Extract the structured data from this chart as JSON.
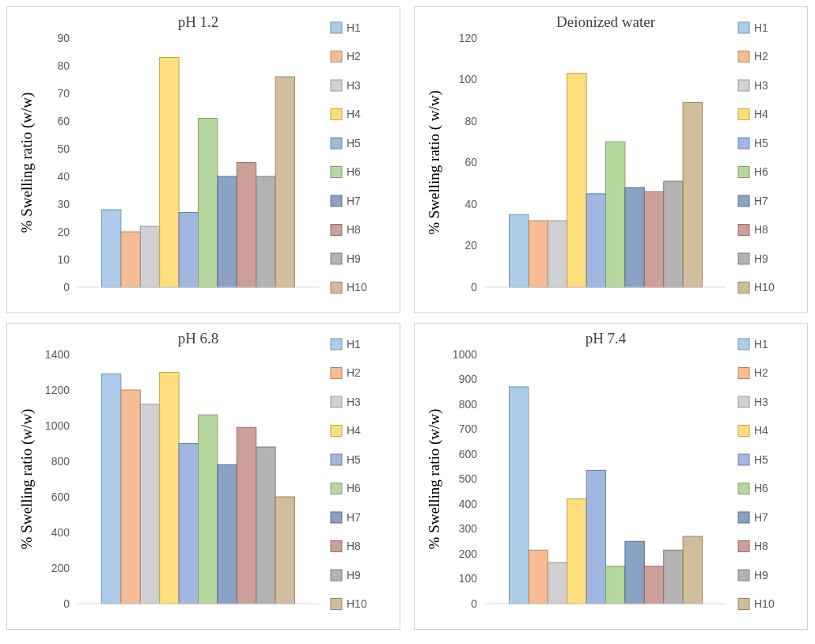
{
  "chart_data": [
    {
      "type": "bar",
      "title": "pH 1.2",
      "ylabel": "% Swelling ratio (w/w)",
      "categories": [
        null
      ],
      "ylim": [
        0,
        90
      ],
      "yticks": [
        0,
        10,
        20,
        30,
        40,
        50,
        60,
        70,
        80,
        90
      ],
      "legend": "right",
      "series": [
        {
          "name": "H1",
          "color": "#9dc3e6",
          "values": [
            28
          ]
        },
        {
          "name": "H2",
          "color": "#f4b183",
          "values": [
            20
          ]
        },
        {
          "name": "H3",
          "color": "#c9c9c9",
          "values": [
            22
          ]
        },
        {
          "name": "H4",
          "color": "#ffd966",
          "values": [
            83
          ]
        },
        {
          "name": "H5",
          "color": "#8faadc",
          "values": [
            27
          ]
        },
        {
          "name": "H6",
          "color": "#a9d18e",
          "values": [
            61
          ]
        },
        {
          "name": "H7",
          "color": "#7592b8",
          "values": [
            40
          ]
        },
        {
          "name": "H8",
          "color": "#c48f85",
          "values": [
            45
          ]
        },
        {
          "name": "H9",
          "color": "#a6a6a6",
          "values": [
            40
          ]
        },
        {
          "name": "H10",
          "color": "#c9b08a",
          "values": [
            76
          ]
        }
      ]
    },
    {
      "type": "bar",
      "title": "Deionized water",
      "ylabel": "% Swelling ratio ( w/w)",
      "categories": [
        null
      ],
      "ylim": [
        0,
        120
      ],
      "yticks": [
        0,
        20,
        40,
        60,
        80,
        100,
        120
      ],
      "legend": "right",
      "series": [
        {
          "name": "H1",
          "color": "#9dc3e6",
          "values": [
            35
          ]
        },
        {
          "name": "H2",
          "color": "#f4b183",
          "values": [
            32
          ]
        },
        {
          "name": "H3",
          "color": "#c9c9c9",
          "values": [
            32
          ]
        },
        {
          "name": "H4",
          "color": "#ffd966",
          "values": [
            103
          ]
        },
        {
          "name": "H5",
          "color": "#8faadc",
          "values": [
            45
          ]
        },
        {
          "name": "H6",
          "color": "#a9d18e",
          "values": [
            70
          ]
        },
        {
          "name": "H7",
          "color": "#7592b8",
          "values": [
            48
          ]
        },
        {
          "name": "H8",
          "color": "#c48f85",
          "values": [
            46
          ]
        },
        {
          "name": "H9",
          "color": "#a6a6a6",
          "values": [
            51
          ]
        },
        {
          "name": "H10",
          "color": "#c9b08a",
          "values": [
            89
          ]
        }
      ]
    },
    {
      "type": "bar",
      "title": "pH 6.8",
      "ylabel": "% Swelling ratio (w/w)",
      "categories": [
        null
      ],
      "ylim": [
        0,
        1400
      ],
      "yticks": [
        0,
        200,
        400,
        600,
        800,
        1000,
        1200,
        1400
      ],
      "legend": "right",
      "series": [
        {
          "name": "H1",
          "color": "#9dc3e6",
          "values": [
            1290
          ]
        },
        {
          "name": "H2",
          "color": "#f4b183",
          "values": [
            1200
          ]
        },
        {
          "name": "H3",
          "color": "#c9c9c9",
          "values": [
            1120
          ]
        },
        {
          "name": "H4",
          "color": "#ffd966",
          "values": [
            1300
          ]
        },
        {
          "name": "H5",
          "color": "#8faadc",
          "values": [
            900
          ]
        },
        {
          "name": "H6",
          "color": "#a9d18e",
          "values": [
            1060
          ]
        },
        {
          "name": "H7",
          "color": "#7592b8",
          "values": [
            780
          ]
        },
        {
          "name": "H8",
          "color": "#c48f85",
          "values": [
            990
          ]
        },
        {
          "name": "H9",
          "color": "#a6a6a6",
          "values": [
            880
          ]
        },
        {
          "name": "H10",
          "color": "#c9b08a",
          "values": [
            600
          ]
        }
      ]
    },
    {
      "type": "bar",
      "title": "pH 7.4",
      "ylabel": "% Swelling ratio  (w/w)",
      "categories": [
        null
      ],
      "ylim": [
        0,
        1000
      ],
      "yticks": [
        0,
        100,
        200,
        300,
        400,
        500,
        600,
        700,
        800,
        900,
        1000
      ],
      "legend": "right",
      "series": [
        {
          "name": "H1",
          "color": "#9dc3e6",
          "values": [
            870
          ]
        },
        {
          "name": "H2",
          "color": "#f4b183",
          "values": [
            215
          ]
        },
        {
          "name": "H3",
          "color": "#c9c9c9",
          "values": [
            165
          ]
        },
        {
          "name": "H4",
          "color": "#ffd966",
          "values": [
            420
          ]
        },
        {
          "name": "H5",
          "color": "#8faadc",
          "values": [
            535
          ]
        },
        {
          "name": "H6",
          "color": "#a9d18e",
          "values": [
            150
          ]
        },
        {
          "name": "H7",
          "color": "#7592b8",
          "values": [
            250
          ]
        },
        {
          "name": "H8",
          "color": "#c48f85",
          "values": [
            150
          ]
        },
        {
          "name": "H9",
          "color": "#a6a6a6",
          "values": [
            215
          ]
        },
        {
          "name": "H10",
          "color": "#c9b08a",
          "values": [
            270
          ]
        }
      ]
    }
  ]
}
